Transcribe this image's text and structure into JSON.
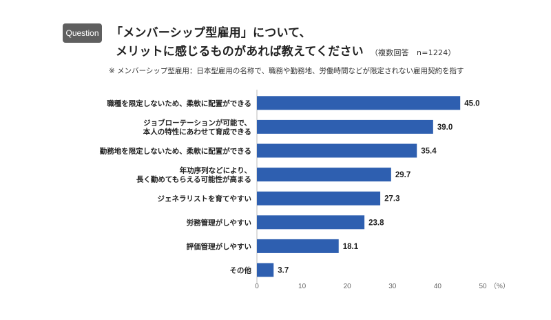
{
  "header": {
    "badge": "Question",
    "title_line1": "「メンバーシップ型雇用」について、",
    "title_line2": "メリットに感じるものがあれば教えてください",
    "respondents": "（複数回答　n=1224）",
    "note": "※ メンバーシップ型雇用：日本型雇用の名称で、職務や勤務地、労働時間などが限定されない雇用契約を指す"
  },
  "colors": {
    "bar": "#2e5fb0",
    "axis": "#bbbbbb"
  },
  "chart_data": {
    "type": "bar",
    "orientation": "horizontal",
    "categories": [
      [
        "職種を限定しないため、柔軟に配置ができる"
      ],
      [
        "ジョブローテーションが可能で、",
        "本人の特性にあわせて育成できる"
      ],
      [
        "勤務地を限定しないため、柔軟に配置ができる"
      ],
      [
        "年功序列などにより、",
        "長く勤めてもらえる可能性が高まる"
      ],
      [
        "ジェネラリストを育てやすい"
      ],
      [
        "労務管理がしやすい"
      ],
      [
        "評価管理がしやすい"
      ],
      [
        "その他"
      ]
    ],
    "values": [
      45.0,
      39.0,
      35.4,
      29.7,
      27.3,
      23.8,
      18.1,
      3.7
    ],
    "value_labels": [
      "45.0",
      "39.0",
      "35.4",
      "29.7",
      "27.3",
      "23.8",
      "18.1",
      "3.7"
    ],
    "xlim": [
      0,
      50
    ],
    "xticks": [
      "0",
      "10",
      "20",
      "30",
      "40",
      "50"
    ],
    "tick_values": [
      0,
      10,
      20,
      30,
      40,
      50
    ],
    "unit": "（%）",
    "grid": false
  }
}
